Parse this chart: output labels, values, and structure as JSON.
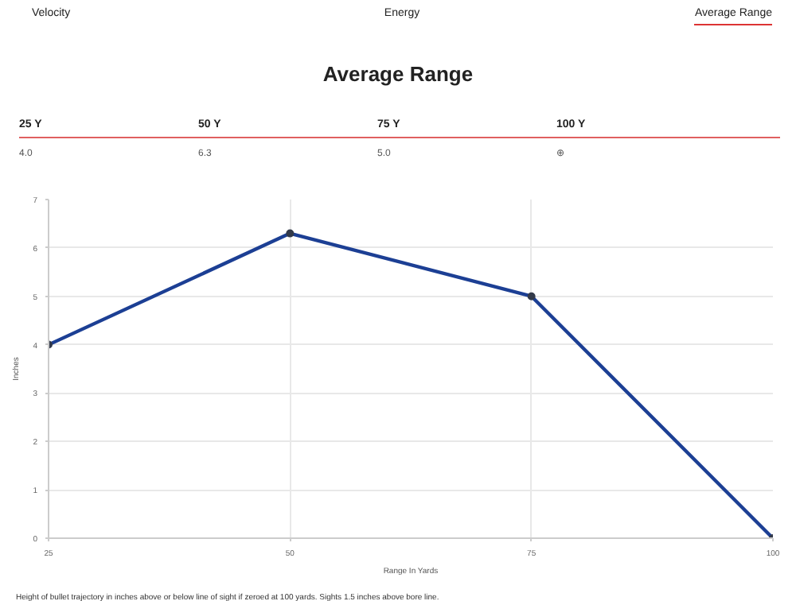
{
  "chart_data": {
    "type": "line",
    "title": "Average Range",
    "xlabel": "Range In Yards",
    "ylabel": "Inches",
    "annotations": [
      "Velocity",
      "Energy",
      "Average Range",
      "25 Y",
      "50 Y",
      "75 Y",
      "100 Y",
      "4.0",
      "6.3",
      "5.0",
      "⊕",
      "Height of bullet trajectory in inches above or below line of sight if zeroed at 100 yards. Sights 1.5 inches above bore line."
    ],
    "x": [
      25,
      50,
      75,
      100
    ],
    "series": [
      {
        "color": "#1c3f94",
        "values": [
          4.0,
          6.3,
          5.0,
          0.0
        ]
      }
    ],
    "xlim": [
      25,
      100
    ],
    "xticks": [
      25,
      50,
      75,
      100
    ],
    "ylim": [
      0,
      7
    ],
    "yticks": [
      0,
      1,
      2,
      3,
      4,
      5,
      6,
      7
    ],
    "grid": true,
    "marker": "circle",
    "line_style": "solid"
  }
}
